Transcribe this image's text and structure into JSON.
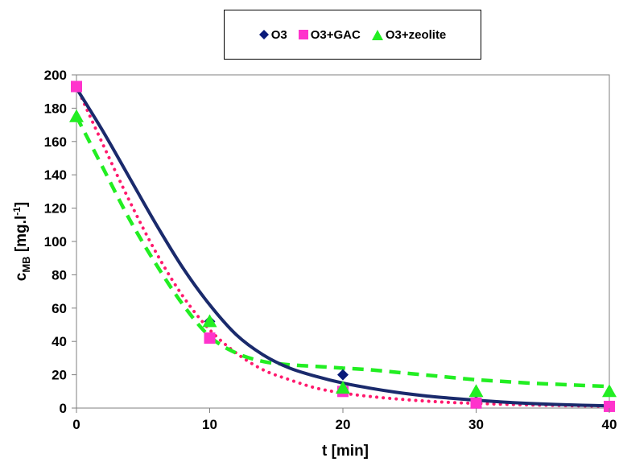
{
  "chart_data": {
    "type": "scatter",
    "xlabel": "t [min]",
    "ylabel": {
      "main": "c",
      "sub": "MB",
      "unit": " [mg.l",
      "sup": "-1",
      "close": "]"
    },
    "xlim": [
      0,
      40
    ],
    "ylim": [
      0,
      200
    ],
    "xticks": [
      0,
      10,
      20,
      30,
      40
    ],
    "yticks": [
      0,
      20,
      40,
      60,
      80,
      100,
      120,
      140,
      160,
      180,
      200
    ],
    "grid": false,
    "legend_position": "top-center",
    "series": [
      {
        "name": "O3",
        "marker": "diamond",
        "color": "#0a1a7a",
        "points": [
          [
            0,
            193
          ],
          [
            10,
            52
          ],
          [
            20,
            20
          ],
          [
            30,
            4
          ],
          [
            40,
            1
          ]
        ],
        "fit": [
          [
            0,
            192
          ],
          [
            2,
            166
          ],
          [
            4,
            138
          ],
          [
            6,
            110
          ],
          [
            8,
            84
          ],
          [
            10,
            62
          ],
          [
            12,
            44
          ],
          [
            14,
            32
          ],
          [
            16,
            24
          ],
          [
            18,
            19
          ],
          [
            20,
            15
          ],
          [
            22,
            12
          ],
          [
            24,
            9.5
          ],
          [
            26,
            7.5
          ],
          [
            28,
            6
          ],
          [
            30,
            4.7
          ],
          [
            32,
            3.6
          ],
          [
            34,
            2.8
          ],
          [
            36,
            2.2
          ],
          [
            38,
            1.7
          ],
          [
            40,
            1.3
          ]
        ],
        "fit_style": "solid",
        "fit_color": "#1a2a6c"
      },
      {
        "name": "O3+GAC",
        "marker": "square",
        "color": "#ff33cc",
        "points": [
          [
            0,
            193
          ],
          [
            10,
            42
          ],
          [
            20,
            10
          ],
          [
            30,
            3
          ],
          [
            40,
            1
          ]
        ],
        "fit": [
          [
            0,
            193
          ],
          [
            2,
            158
          ],
          [
            4,
            124
          ],
          [
            6,
            93
          ],
          [
            8,
            67
          ],
          [
            10,
            47
          ],
          [
            12,
            33
          ],
          [
            14,
            23
          ],
          [
            16,
            17
          ],
          [
            18,
            12
          ],
          [
            20,
            9
          ],
          [
            22,
            7
          ],
          [
            24,
            5.5
          ],
          [
            26,
            4.3
          ],
          [
            28,
            3.4
          ],
          [
            30,
            2.8
          ],
          [
            32,
            2.3
          ],
          [
            34,
            1.9
          ],
          [
            36,
            1.6
          ],
          [
            38,
            1.3
          ],
          [
            40,
            1.1
          ]
        ],
        "fit_style": "dotted",
        "fit_color": "#ff1a6e"
      },
      {
        "name": "O3+zeolite",
        "marker": "triangle",
        "color": "#22ee22",
        "points": [
          [
            0,
            175
          ],
          [
            10,
            52
          ],
          [
            20,
            12
          ],
          [
            30,
            10
          ],
          [
            40,
            10
          ]
        ],
        "fit": [
          [
            0,
            175
          ],
          [
            2,
            144
          ],
          [
            4,
            113
          ],
          [
            6,
            86
          ],
          [
            8,
            62
          ],
          [
            10,
            43
          ],
          [
            12,
            33
          ],
          [
            14,
            28
          ],
          [
            16,
            26
          ],
          [
            18,
            25
          ],
          [
            20,
            24
          ],
          [
            22,
            23
          ],
          [
            24,
            21.5
          ],
          [
            26,
            20
          ],
          [
            28,
            18.5
          ],
          [
            30,
            17
          ],
          [
            32,
            16
          ],
          [
            34,
            15
          ],
          [
            36,
            14.3
          ],
          [
            38,
            13.6
          ],
          [
            40,
            13
          ]
        ],
        "fit_style": "dashed",
        "fit_color": "#22ee22"
      }
    ]
  }
}
